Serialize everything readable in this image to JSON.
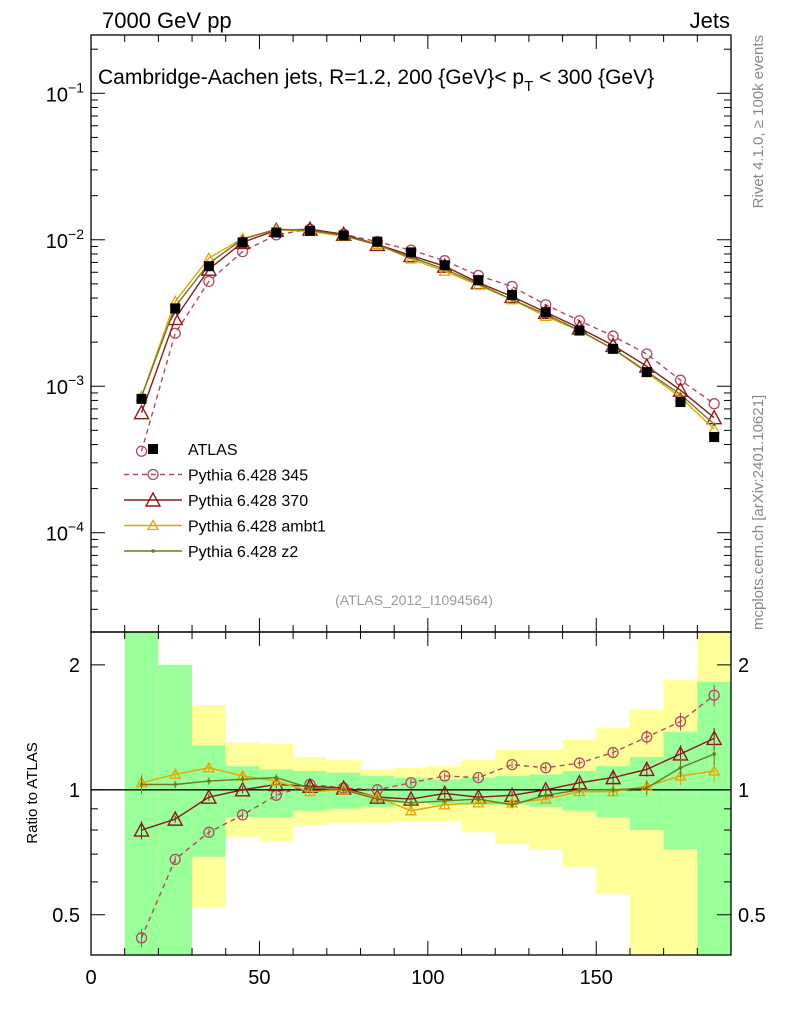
{
  "header": {
    "left": "7000 GeV pp",
    "right": "Jets",
    "side_top": "Rivet 4.1.0, ≥ 100k events",
    "side_bottom": "mcplots.cern.ch [arXiv:2401.10621]"
  },
  "chart_data": {
    "type": "line",
    "title": "Cambridge-Aachen jets, R=1.2,  200 {GeV}< p_T < 300 {GeV}",
    "title_parts": {
      "main": "Cambridge-Aachen jets, R=1.2,  200 {GeV}< p",
      "sub": "T",
      "tail": " < 300 {GeV}"
    },
    "analysis_id": "(ATLAS_2012_I1094564)",
    "x": [
      15,
      25,
      35,
      45,
      55,
      65,
      75,
      85,
      95,
      105,
      115,
      125,
      135,
      145,
      155,
      165,
      175,
      185
    ],
    "xlim": [
      0,
      190
    ],
    "xticks": [
      0,
      50,
      100,
      150
    ],
    "xtick_labels": [
      "0",
      "50",
      "100",
      "150"
    ],
    "main_yscale": "log",
    "main_ylim": [
      2.1e-05,
      0.25
    ],
    "main_yticks": [
      0.0001,
      0.001,
      0.01,
      0.1
    ],
    "main_ytick_labels": [
      {
        "base": "10",
        "exp": "−4"
      },
      {
        "base": "10",
        "exp": "−3"
      },
      {
        "base": "10",
        "exp": "−2"
      },
      {
        "base": "10",
        "exp": "−1"
      }
    ],
    "ratio_ylabel": "Ratio to ATLAS",
    "ratio_yscale": "log",
    "ratio_ylim": [
      0.4,
      2.4
    ],
    "ratio_yticks": [
      0.5,
      1,
      2
    ],
    "ratio_ytick_labels": [
      "0.5",
      "1",
      "2"
    ],
    "series": [
      {
        "name": "ATLAS",
        "style": "data",
        "color": "#000000",
        "values": [
          0.00082,
          0.0034,
          0.0066,
          0.0096,
          0.0112,
          0.0115,
          0.0107,
          0.0097,
          0.0082,
          0.0067,
          0.0053,
          0.0042,
          0.0032,
          0.0024,
          0.0018,
          0.00125,
          0.00078,
          0.00045
        ]
      },
      {
        "name": "Pythia 6.428 345",
        "style": "dashed-circle",
        "color": "#b5485e",
        "values": [
          0.00036,
          0.0023,
          0.0052,
          0.0083,
          0.0108,
          0.0118,
          0.0109,
          0.0097,
          0.0085,
          0.0072,
          0.0057,
          0.0048,
          0.0036,
          0.0028,
          0.0022,
          0.00166,
          0.0011,
          0.00076
        ],
        "ratio": [
          0.44,
          0.68,
          0.79,
          0.87,
          0.97,
          1.03,
          1.01,
          1.0,
          1.04,
          1.08,
          1.07,
          1.15,
          1.13,
          1.16,
          1.23,
          1.34,
          1.46,
          1.69
        ]
      },
      {
        "name": "Pythia 6.428 370",
        "style": "solid-triangle",
        "color": "#8b1a1a",
        "values": [
          0.00066,
          0.0029,
          0.0063,
          0.0096,
          0.0116,
          0.0118,
          0.0109,
          0.0093,
          0.0078,
          0.0066,
          0.0051,
          0.0041,
          0.0032,
          0.0025,
          0.0019,
          0.00137,
          0.00094,
          0.00061
        ],
        "ratio": [
          0.8,
          0.85,
          0.96,
          1.0,
          1.03,
          1.02,
          1.01,
          0.96,
          0.95,
          0.98,
          0.96,
          0.97,
          1.0,
          1.04,
          1.07,
          1.12,
          1.22,
          1.33
        ]
      },
      {
        "name": "Pythia 6.428 ambt1",
        "style": "solid-triangle-small",
        "color": "#e8a400",
        "values": [
          0.00085,
          0.0038,
          0.0075,
          0.0102,
          0.0117,
          0.0114,
          0.0106,
          0.0093,
          0.0074,
          0.0061,
          0.0049,
          0.0039,
          0.003,
          0.0024,
          0.0018,
          0.00124,
          0.00084,
          0.00051
        ],
        "ratio": [
          1.04,
          1.09,
          1.13,
          1.08,
          1.05,
          0.99,
          1.0,
          0.96,
          0.89,
          0.92,
          0.93,
          0.93,
          0.95,
          0.99,
          0.99,
          1.02,
          1.08,
          1.11
        ]
      },
      {
        "name": "Pythia 6.428 z2",
        "style": "solid-dot",
        "color": "#6b7a1f",
        "values": [
          0.00085,
          0.0035,
          0.0069,
          0.0101,
          0.0118,
          0.0116,
          0.0107,
          0.0092,
          0.0076,
          0.0063,
          0.005,
          0.0039,
          0.0031,
          0.0024,
          0.0018,
          0.00126,
          0.00088,
          0.00055
        ],
        "ratio": [
          1.03,
          1.03,
          1.05,
          1.06,
          1.07,
          1.01,
          1.0,
          0.95,
          0.93,
          0.94,
          0.95,
          0.92,
          0.97,
          1.0,
          1.0,
          1.01,
          1.13,
          1.22
        ]
      }
    ],
    "ratio_errors": [
      0.05,
      0.02,
      0.02,
      0.02,
      0.02,
      0.02,
      0.02,
      0.02,
      0.02,
      0.02,
      0.02,
      0.02,
      0.02,
      0.02,
      0.03,
      0.04,
      0.05,
      0.06
    ],
    "bands": {
      "edges": [
        10,
        20,
        30,
        40,
        50,
        60,
        70,
        80,
        90,
        100,
        110,
        120,
        130,
        140,
        150,
        160,
        170,
        180,
        190
      ],
      "inner_color": "#99ff99",
      "outer_color": "#ffff99",
      "inner": [
        [
          0.4,
          2.4
        ],
        [
          0.4,
          2.0
        ],
        [
          0.69,
          1.28
        ],
        [
          0.86,
          1.14
        ],
        [
          0.86,
          1.12
        ],
        [
          0.89,
          1.11
        ],
        [
          0.9,
          1.1
        ],
        [
          0.91,
          1.08
        ],
        [
          0.93,
          1.07
        ],
        [
          0.92,
          1.06
        ],
        [
          0.92,
          1.07
        ],
        [
          0.92,
          1.08
        ],
        [
          0.91,
          1.09
        ],
        [
          0.89,
          1.11
        ],
        [
          0.86,
          1.14
        ],
        [
          0.8,
          1.2
        ],
        [
          0.72,
          1.38
        ],
        [
          0.4,
          1.82
        ]
      ],
      "outer": [
        [
          0.4,
          2.4
        ],
        [
          0.45,
          2.0
        ],
        [
          0.52,
          1.6
        ],
        [
          0.77,
          1.3
        ],
        [
          0.75,
          1.29
        ],
        [
          0.82,
          1.2
        ],
        [
          0.83,
          1.18
        ],
        [
          0.83,
          1.12
        ],
        [
          0.84,
          1.13
        ],
        [
          0.84,
          1.14
        ],
        [
          0.79,
          1.18
        ],
        [
          0.74,
          1.25
        ],
        [
          0.72,
          1.25
        ],
        [
          0.65,
          1.32
        ],
        [
          0.56,
          1.41
        ],
        [
          0.4,
          1.56
        ],
        [
          0.4,
          1.84
        ],
        [
          0.4,
          2.4
        ]
      ]
    }
  }
}
